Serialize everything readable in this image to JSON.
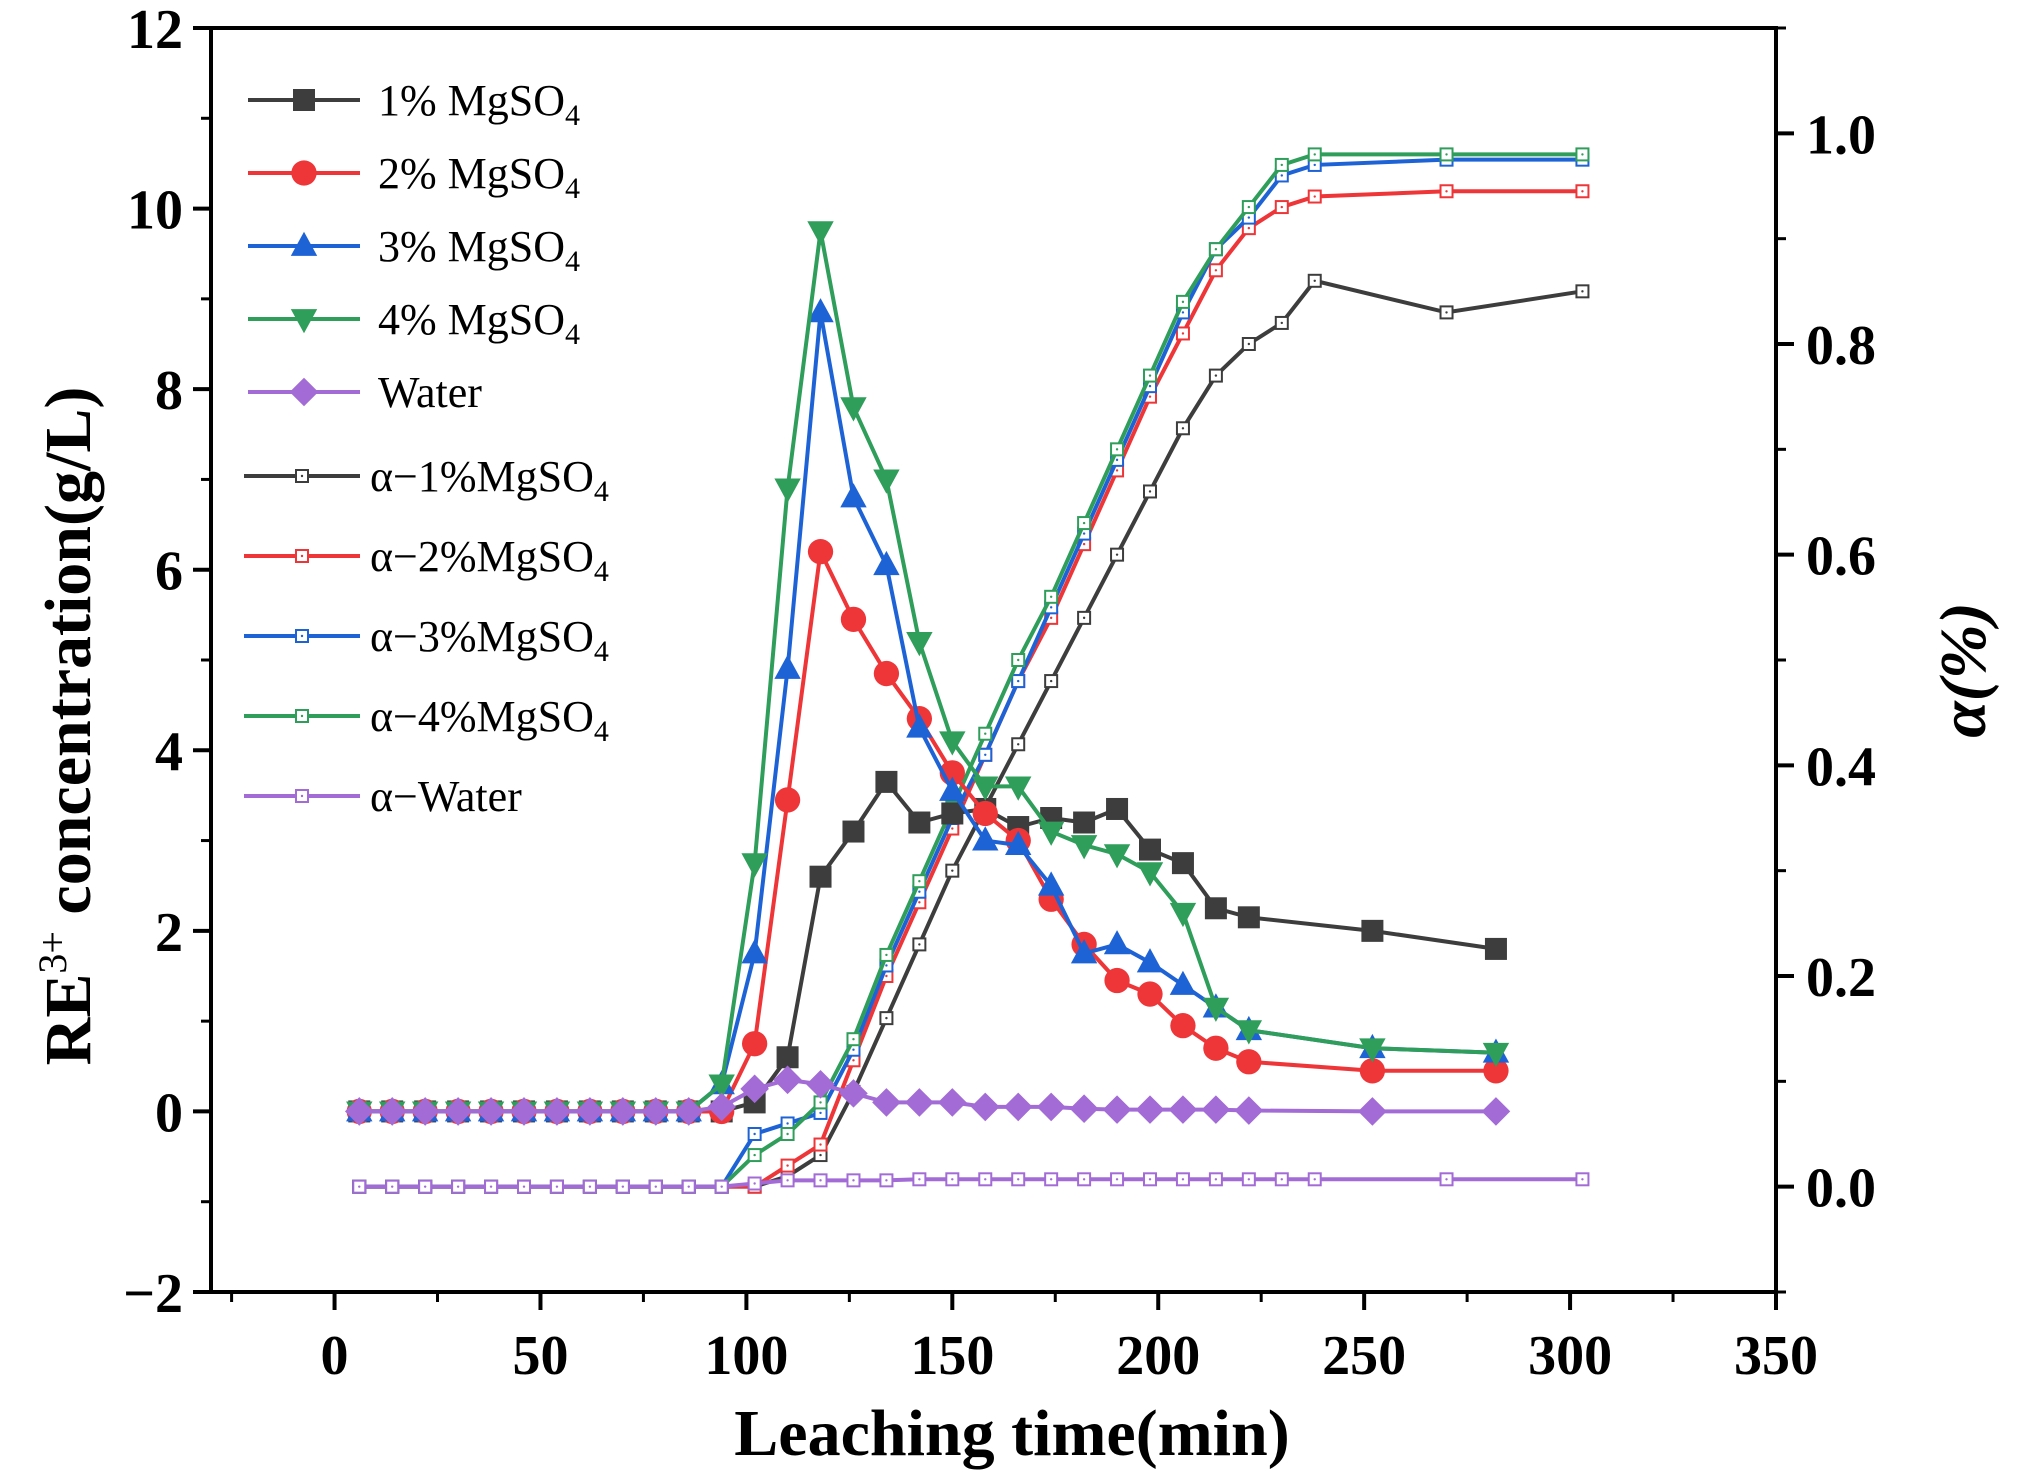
{
  "chart_data": {
    "type": "line",
    "title": "",
    "xlabel": "Leaching time(min)",
    "ylabel_left": {
      "main": "RE",
      "sup": "3+",
      "rest": " concentration(g/L)"
    },
    "ylabel_right": "α(%)",
    "xlim": [
      -30,
      350
    ],
    "ylim_left": [
      -2,
      12
    ],
    "ylim_right": [
      -0.1,
      1.1
    ],
    "xticks": [
      0,
      50,
      100,
      150,
      200,
      250,
      300,
      350
    ],
    "yticks_left": [
      -2,
      0,
      2,
      4,
      6,
      8,
      10,
      12
    ],
    "yticks_left_labels": [
      "−2",
      "0",
      "2",
      "4",
      "6",
      "8",
      "10",
      "12"
    ],
    "yticks_right": [
      0.0,
      0.2,
      0.4,
      0.6,
      0.8,
      1.0
    ],
    "yticks_right_labels": [
      "0.0",
      "0.2",
      "0.4",
      "0.6",
      "0.8",
      "1.0"
    ],
    "grid": false,
    "legend_position": "top-left",
    "concentration_series": [
      {
        "name": "1% MgSO",
        "sub": "4",
        "color": "#3d3d3d",
        "marker": "square",
        "x": [
          6,
          14,
          22,
          30,
          38,
          46,
          54,
          62,
          70,
          78,
          86,
          94,
          102,
          110,
          118,
          126,
          134,
          142,
          150,
          158,
          166,
          174,
          182,
          190,
          198,
          206,
          214,
          222,
          252,
          282
        ],
        "y": [
          0,
          0,
          0,
          0,
          0,
          0,
          0,
          0,
          0,
          0,
          0,
          0,
          0.1,
          0.6,
          2.6,
          3.1,
          3.65,
          3.2,
          3.3,
          3.35,
          3.15,
          3.25,
          3.2,
          3.35,
          2.9,
          2.75,
          2.25,
          2.15,
          2.0,
          1.8
        ]
      },
      {
        "name": "2% MgSO",
        "sub": "4",
        "color": "#ee3538",
        "marker": "circle",
        "x": [
          6,
          14,
          22,
          30,
          38,
          46,
          54,
          62,
          70,
          78,
          86,
          94,
          102,
          110,
          118,
          126,
          134,
          142,
          150,
          158,
          166,
          174,
          182,
          190,
          198,
          206,
          214,
          222,
          252,
          282
        ],
        "y": [
          0,
          0,
          0,
          0,
          0,
          0,
          0,
          0,
          0,
          0,
          0,
          0,
          0.75,
          3.45,
          6.2,
          5.45,
          4.85,
          4.35,
          3.75,
          3.3,
          3.0,
          2.35,
          1.85,
          1.45,
          1.3,
          0.95,
          0.7,
          0.55,
          0.45,
          0.45
        ]
      },
      {
        "name": "3% MgSO",
        "sub": "4",
        "color": "#1e63d6",
        "marker": "triangle-up",
        "x": [
          6,
          14,
          22,
          30,
          38,
          46,
          54,
          62,
          70,
          78,
          86,
          94,
          102,
          110,
          118,
          126,
          134,
          142,
          150,
          158,
          166,
          174,
          182,
          190,
          198,
          206,
          214,
          222,
          252,
          282
        ],
        "y": [
          0,
          0,
          0,
          0,
          0,
          0,
          0,
          0,
          0,
          0,
          0,
          0.3,
          1.75,
          4.9,
          8.85,
          6.8,
          6.05,
          4.25,
          3.55,
          3.0,
          2.95,
          2.5,
          1.75,
          1.85,
          1.65,
          1.4,
          1.15,
          0.9,
          0.7,
          0.65
        ]
      },
      {
        "name": "4% MgSO",
        "sub": "4",
        "color": "#2f9e5a",
        "marker": "triangle-down",
        "x": [
          6,
          14,
          22,
          30,
          38,
          46,
          54,
          62,
          70,
          78,
          86,
          94,
          102,
          110,
          118,
          126,
          134,
          142,
          150,
          158,
          166,
          174,
          182,
          190,
          198,
          206,
          214,
          222,
          252,
          282
        ],
        "y": [
          0,
          0,
          0,
          0,
          0,
          0,
          0,
          0,
          0,
          0,
          0,
          0.3,
          2.75,
          6.9,
          9.75,
          7.8,
          7.0,
          5.2,
          4.1,
          3.6,
          3.6,
          3.1,
          2.95,
          2.85,
          2.65,
          2.2,
          1.15,
          0.9,
          0.7,
          0.65
        ]
      },
      {
        "name": "Water",
        "sub": "",
        "color": "#a36bd6",
        "marker": "diamond",
        "x": [
          6,
          14,
          22,
          30,
          38,
          46,
          54,
          62,
          70,
          78,
          86,
          94,
          102,
          110,
          118,
          126,
          134,
          142,
          150,
          158,
          166,
          174,
          182,
          190,
          198,
          206,
          214,
          222,
          252,
          282
        ],
        "y": [
          0,
          0,
          0,
          0,
          0,
          0,
          0,
          0,
          0,
          0,
          0,
          0.05,
          0.25,
          0.35,
          0.3,
          0.2,
          0.1,
          0.1,
          0.1,
          0.05,
          0.05,
          0.05,
          0.03,
          0.02,
          0.02,
          0.02,
          0.02,
          0.01,
          0.0,
          0.0
        ]
      }
    ],
    "alpha_series": [
      {
        "name": "α−1%MgSO",
        "sub": "4",
        "color": "#3d3d3d",
        "x": [
          6,
          14,
          22,
          30,
          38,
          46,
          54,
          62,
          70,
          78,
          86,
          94,
          102,
          110,
          118,
          126,
          134,
          142,
          150,
          158,
          166,
          174,
          182,
          190,
          198,
          206,
          214,
          222,
          230,
          238,
          270,
          303
        ],
        "y": [
          0,
          0,
          0,
          0,
          0,
          0,
          0,
          0,
          0,
          0,
          0,
          0,
          0,
          0.01,
          0.03,
          0.09,
          0.16,
          0.23,
          0.3,
          0.36,
          0.42,
          0.48,
          0.54,
          0.6,
          0.66,
          0.72,
          0.77,
          0.8,
          0.82,
          0.86,
          0.83,
          0.85
        ]
      },
      {
        "name": "α−2%MgSO",
        "sub": "4",
        "color": "#ee3538",
        "x": [
          6,
          14,
          22,
          30,
          38,
          46,
          54,
          62,
          70,
          78,
          86,
          94,
          102,
          110,
          118,
          126,
          134,
          142,
          150,
          158,
          166,
          174,
          182,
          190,
          198,
          206,
          214,
          222,
          230,
          238,
          270,
          303
        ],
        "y": [
          0,
          0,
          0,
          0,
          0,
          0,
          0,
          0,
          0,
          0,
          0,
          0,
          0,
          0.02,
          0.04,
          0.12,
          0.2,
          0.27,
          0.34,
          0.41,
          0.48,
          0.54,
          0.61,
          0.68,
          0.75,
          0.81,
          0.87,
          0.91,
          0.93,
          0.94,
          0.945,
          0.945
        ]
      },
      {
        "name": "α−3%MgSO",
        "sub": "4",
        "color": "#1e63d6",
        "x": [
          6,
          14,
          22,
          30,
          38,
          46,
          54,
          62,
          70,
          78,
          86,
          94,
          102,
          110,
          118,
          126,
          134,
          142,
          150,
          158,
          166,
          174,
          182,
          190,
          198,
          206,
          214,
          222,
          230,
          238,
          270,
          303
        ],
        "y": [
          0,
          0,
          0,
          0,
          0,
          0,
          0,
          0,
          0,
          0,
          0,
          0,
          0.05,
          0.06,
          0.07,
          0.13,
          0.21,
          0.28,
          0.35,
          0.41,
          0.48,
          0.55,
          0.62,
          0.69,
          0.76,
          0.83,
          0.89,
          0.92,
          0.96,
          0.97,
          0.975,
          0.975
        ]
      },
      {
        "name": "α−4%MgSO",
        "sub": "4",
        "color": "#2f9e5a",
        "x": [
          6,
          14,
          22,
          30,
          38,
          46,
          54,
          62,
          70,
          78,
          86,
          94,
          102,
          110,
          118,
          126,
          134,
          142,
          150,
          158,
          166,
          174,
          182,
          190,
          198,
          206,
          214,
          222,
          230,
          238,
          270,
          303
        ],
        "y": [
          0,
          0,
          0,
          0,
          0,
          0,
          0,
          0,
          0,
          0,
          0,
          0,
          0.03,
          0.05,
          0.08,
          0.14,
          0.22,
          0.29,
          0.36,
          0.43,
          0.5,
          0.56,
          0.63,
          0.7,
          0.77,
          0.84,
          0.89,
          0.93,
          0.97,
          0.98,
          0.98,
          0.98
        ]
      },
      {
        "name": "α−Water",
        "sub": "",
        "color": "#a36bd6",
        "x": [
          6,
          14,
          22,
          30,
          38,
          46,
          54,
          62,
          70,
          78,
          86,
          94,
          102,
          110,
          118,
          126,
          134,
          142,
          150,
          158,
          166,
          174,
          182,
          190,
          198,
          206,
          214,
          222,
          230,
          238,
          270,
          303
        ],
        "y": [
          0,
          0,
          0,
          0,
          0,
          0,
          0,
          0,
          0,
          0,
          0,
          0,
          0.003,
          0.006,
          0.006,
          0.006,
          0.006,
          0.007,
          0.007,
          0.007,
          0.007,
          0.007,
          0.007,
          0.007,
          0.007,
          0.007,
          0.007,
          0.007,
          0.007,
          0.007,
          0.007,
          0.007
        ]
      }
    ]
  }
}
